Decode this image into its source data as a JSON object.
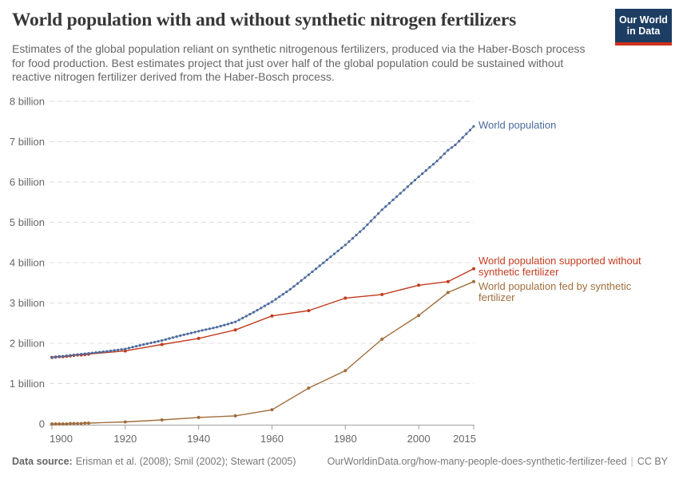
{
  "header": {
    "title": "World population with and without synthetic nitrogen fertilizers",
    "subtitle": "Estimates of the global population reliant on synthetic nitrogenous fertilizers, produced via the Haber-Bosch process for food production. Best estimates project that just over half of the global population could be sustained without reactive nitrogen fertilizer derived from the Haber-Bosch process.",
    "logo": {
      "line1": "Our World",
      "line2": "in Data",
      "bg": "#1d3d63",
      "accent": "#d1301c"
    }
  },
  "footer": {
    "datasource_label": "Data source:",
    "datasource_value": "Erisman et al. (2008); Smil (2002); Stewart (2005)",
    "url": "OurWorldinData.org/how-many-people-does-synthetic-fertilizer-feed",
    "separator": "|",
    "license": "CC BY"
  },
  "chart_data": {
    "type": "line",
    "title": "World population with and without synthetic nitrogen fertilizers",
    "xlabel": "",
    "ylabel": "",
    "xlim": [
      1900,
      2015
    ],
    "ylim": [
      0,
      8
    ],
    "grid": true,
    "legend_position": "line-end-labels",
    "x_ticks": [
      1900,
      1920,
      1940,
      1960,
      1980,
      2000,
      2015
    ],
    "y_ticks": [
      {
        "value": 0,
        "label": "0"
      },
      {
        "value": 1,
        "label": "1 billion"
      },
      {
        "value": 2,
        "label": "2 billion"
      },
      {
        "value": 3,
        "label": "3 billion"
      },
      {
        "value": 4,
        "label": "4 billion"
      },
      {
        "value": 5,
        "label": "5 billion"
      },
      {
        "value": 6,
        "label": "6 billion"
      },
      {
        "value": 7,
        "label": "7 billion"
      },
      {
        "value": 8,
        "label": "8 billion"
      }
    ],
    "series": [
      {
        "name": "World population",
        "slug": "world-population",
        "color": "#4C6A9C",
        "marker": "annual-dots",
        "label_lines": [
          "World population"
        ],
        "label_dy": -8,
        "points": [
          [
            1900,
            1.65
          ],
          [
            1905,
            1.7
          ],
          [
            1910,
            1.75
          ],
          [
            1915,
            1.8
          ],
          [
            1920,
            1.86
          ],
          [
            1925,
            1.97
          ],
          [
            1930,
            2.07
          ],
          [
            1935,
            2.19
          ],
          [
            1940,
            2.3
          ],
          [
            1945,
            2.4
          ],
          [
            1950,
            2.53
          ],
          [
            1955,
            2.77
          ],
          [
            1960,
            3.03
          ],
          [
            1965,
            3.34
          ],
          [
            1970,
            3.7
          ],
          [
            1975,
            4.07
          ],
          [
            1980,
            4.44
          ],
          [
            1985,
            4.85
          ],
          [
            1990,
            5.31
          ],
          [
            1995,
            5.72
          ],
          [
            2000,
            6.13
          ],
          [
            2005,
            6.52
          ],
          [
            2008,
            6.79
          ],
          [
            2010,
            6.92
          ],
          [
            2015,
            7.38
          ]
        ]
      },
      {
        "name": "World population supported without synthetic fertilizer",
        "slug": "supported-without-synthetic-fertilizer",
        "color": "#C23B1E",
        "marker": "point",
        "label_lines": [
          "World population supported without",
          "synthetic fertilizer"
        ],
        "label_dy": -17,
        "points": [
          [
            1900,
            1.65
          ],
          [
            1901,
            1.66
          ],
          [
            1902,
            1.67
          ],
          [
            1903,
            1.67
          ],
          [
            1904,
            1.68
          ],
          [
            1905,
            1.69
          ],
          [
            1906,
            1.7
          ],
          [
            1907,
            1.71
          ],
          [
            1908,
            1.71
          ],
          [
            1909,
            1.72
          ],
          [
            1910,
            1.73
          ],
          [
            1920,
            1.81
          ],
          [
            1930,
            1.97
          ],
          [
            1940,
            2.12
          ],
          [
            1950,
            2.33
          ],
          [
            1960,
            2.68
          ],
          [
            1970,
            2.81
          ],
          [
            1980,
            3.12
          ],
          [
            1990,
            3.21
          ],
          [
            2000,
            3.44
          ],
          [
            2008,
            3.53
          ],
          [
            2015,
            3.85
          ]
        ]
      },
      {
        "name": "World population fed by synthetic fertilizer",
        "slug": "fed-by-synthetic-fertilizer",
        "color": "#A06E3C",
        "marker": "point",
        "label_lines": [
          "World population fed by synthetic",
          "fertilizer"
        ],
        "label_dy": -1,
        "points": [
          [
            1900,
            0.0
          ],
          [
            1901,
            0.0
          ],
          [
            1902,
            0.0
          ],
          [
            1903,
            0.0
          ],
          [
            1904,
            0.0
          ],
          [
            1905,
            0.01
          ],
          [
            1906,
            0.01
          ],
          [
            1907,
            0.01
          ],
          [
            1908,
            0.01
          ],
          [
            1909,
            0.02
          ],
          [
            1910,
            0.02
          ],
          [
            1920,
            0.05
          ],
          [
            1930,
            0.1
          ],
          [
            1940,
            0.16
          ],
          [
            1950,
            0.2
          ],
          [
            1960,
            0.35
          ],
          [
            1970,
            0.89
          ],
          [
            1980,
            1.32
          ],
          [
            1990,
            2.1
          ],
          [
            2000,
            2.69
          ],
          [
            2008,
            3.26
          ],
          [
            2015,
            3.53
          ]
        ]
      }
    ]
  }
}
